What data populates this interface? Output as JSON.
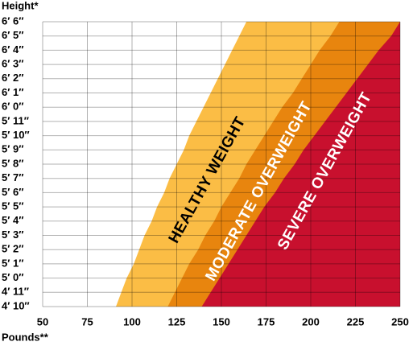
{
  "chart_data": {
    "type": "zones",
    "y_label": "Height*",
    "x_label": "Pounds**",
    "categories": [
      "4′ 10″",
      "4′ 11″",
      "5′ 0″",
      "5′ 1″",
      "5′ 2″",
      "5′ 3″",
      "5′ 4″",
      "5′ 5″",
      "5′ 6″",
      "5′ 7″",
      "5′ 8″",
      "5′ 9″",
      "5′ 10″",
      "5′ 11″",
      "6′ 0″",
      "6′ 1″",
      "6′ 2″",
      "6′ 3″",
      "6′ 4″",
      "6′ 5″",
      "6′ 6″"
    ],
    "xlim": [
      50,
      250
    ],
    "xticks": [
      50,
      75,
      100,
      125,
      150,
      175,
      200,
      225,
      250
    ],
    "grid": true,
    "series": [
      {
        "name": "HEALTHY WEIGHT",
        "color": "#fbbd45",
        "text_color": "#000000",
        "values": [
          91,
          94,
          97,
          101,
          104,
          107,
          111,
          114,
          118,
          121,
          125,
          129,
          132,
          136,
          140,
          144,
          148,
          152,
          156,
          160,
          164
        ]
      },
      {
        "name": "MODERATE OVERWEIGHT",
        "color": "#e8850e",
        "text_color": "#ffffff",
        "values": [
          120,
          124,
          128,
          132,
          137,
          141,
          146,
          150,
          155,
          160,
          164,
          169,
          174,
          179,
          184,
          190,
          195,
          200,
          205,
          211,
          216
        ]
      },
      {
        "name": "SEVERE OVERWEIGHT",
        "color": "#c8102e",
        "text_color": "#ffffff",
        "values": [
          139,
          144,
          149,
          154,
          159,
          164,
          169,
          174,
          180,
          185,
          191,
          196,
          202,
          208,
          214,
          220,
          226,
          232,
          238,
          245,
          250
        ]
      }
    ]
  }
}
